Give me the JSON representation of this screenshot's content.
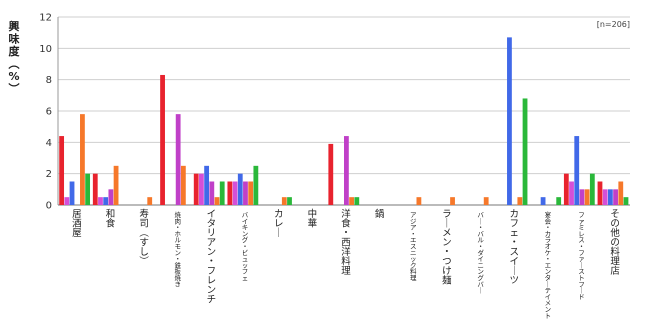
{
  "chart_data": {
    "type": "bar",
    "ylabel": "興味度（%）",
    "note": "[n=206]",
    "ylim": [
      0,
      12
    ],
    "yticks": [
      0,
      2,
      4,
      6,
      8,
      10,
      12
    ],
    "grid": true,
    "categories": [
      "居酒屋",
      "和食",
      "寿司（すし）",
      "焼肉・ホルモン・鉄板焼き",
      "イタリアン・フレンチ",
      "バイキング・ビュッフェ",
      "カレー",
      "中華",
      "洋食・西洋料理",
      "鍋",
      "アジア・エスニック料理",
      "ラーメン・つけ麺",
      "バー・バル・ダイニングバー",
      "カフェ・スイーツ",
      "宴会・カラオケ・エンターテイメント",
      "ファミレス・ファーストフード",
      "その他の料理店"
    ],
    "series": [
      {
        "color": "#e8232e",
        "values": [
          4.4,
          2.0,
          0,
          8.3,
          2.0,
          1.5,
          0,
          0,
          3.9,
          0,
          0,
          0,
          0,
          0,
          0,
          2.0,
          1.5
        ]
      },
      {
        "color": "#d54fd8",
        "values": [
          0.5,
          0.5,
          0,
          0,
          2.0,
          1.5,
          0,
          0,
          0,
          0,
          0,
          0,
          0,
          0,
          0,
          1.5,
          1.0
        ]
      },
      {
        "color": "#4169e8",
        "values": [
          1.5,
          0.5,
          0,
          0,
          2.5,
          2.0,
          0,
          0,
          0,
          0,
          0,
          0,
          0,
          10.7,
          0.5,
          4.4,
          1.0
        ]
      },
      {
        "color": "#c040c8",
        "values": [
          0,
          1.0,
          0,
          5.8,
          1.5,
          1.5,
          0,
          0,
          4.4,
          0,
          0,
          0,
          0,
          0,
          0,
          1.0,
          1.0
        ]
      },
      {
        "color": "#f6782a",
        "values": [
          5.8,
          2.5,
          0.5,
          2.5,
          0.5,
          1.5,
          0.5,
          0,
          0.5,
          0,
          0.5,
          0.5,
          0.5,
          0.5,
          0,
          1.0,
          1.5
        ]
      },
      {
        "color": "#2ab83a",
        "values": [
          2.0,
          0,
          0,
          0,
          1.5,
          2.5,
          0.5,
          0,
          0.5,
          0,
          0,
          0,
          0,
          6.8,
          0.5,
          2.0,
          0.5
        ]
      }
    ]
  }
}
